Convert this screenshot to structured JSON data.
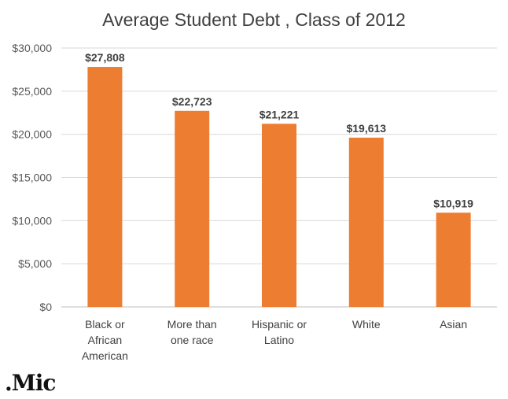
{
  "chart_data": {
    "type": "bar",
    "title": "Average Student Debt , Class of 2012",
    "categories": [
      [
        "Black or",
        "African",
        "American"
      ],
      [
        "More than",
        "one race"
      ],
      [
        "Hispanic or",
        "Latino"
      ],
      [
        "White"
      ],
      [
        "Asian"
      ]
    ],
    "values": [
      27808,
      22723,
      21221,
      19613,
      10919
    ],
    "data_labels": [
      "$27,808",
      "$22,723",
      "$21,221",
      "$19,613",
      "$10,919"
    ],
    "yticks": [
      0,
      5000,
      10000,
      15000,
      20000,
      25000,
      30000
    ],
    "ytick_labels": [
      "$0",
      "$5,000",
      "$10,000",
      "$15,000",
      "$20,000",
      "$25,000",
      "$30,000"
    ],
    "ylim": [
      0,
      30000
    ],
    "grid": true,
    "legend": "none",
    "bar_color": "#ED7D31",
    "grid_color": "#D9D9D9"
  },
  "brand": {
    "logo_text": ".Mic"
  }
}
